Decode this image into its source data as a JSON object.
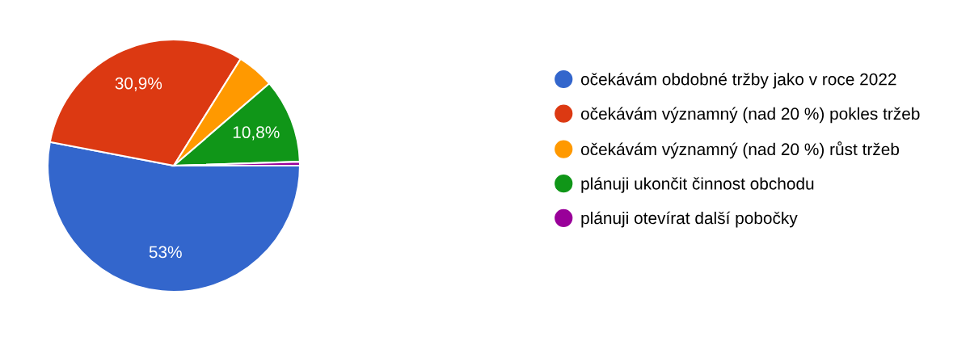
{
  "chart_data": {
    "type": "pie",
    "categories": [
      "očekávám obdobné tržby jako v roce 2022",
      "očekávám významný (nad 20 %) pokles tržeb",
      "očekávám významný (nad 20 %) růst tržeb",
      "plánuji ukončit činnost obchodu",
      "plánuji otevírat další pobočky"
    ],
    "values": [
      53,
      30.9,
      4.8,
      10.8,
      0.5
    ],
    "colors": [
      "#3366cc",
      "#dc3912",
      "#ff9900",
      "#109618",
      "#990099"
    ],
    "value_labels": [
      "53%",
      "30,9%",
      null,
      "10,8%",
      null
    ],
    "legend": "right"
  }
}
